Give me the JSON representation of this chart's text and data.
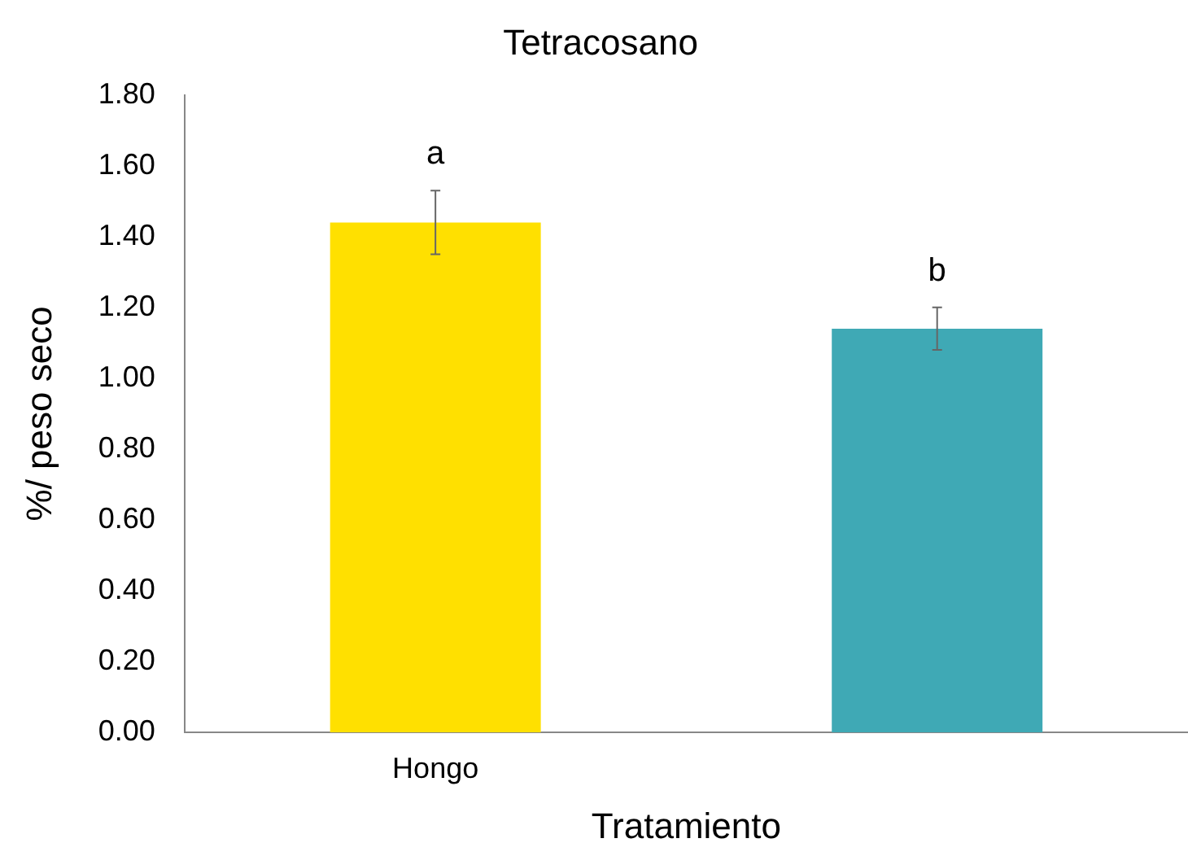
{
  "chart_data": {
    "type": "bar",
    "title": "Tetracosano",
    "xlabel": "Tratamiento",
    "ylabel": "%/ peso seco",
    "categories": [
      "Hongo",
      null
    ],
    "values": [
      1.44,
      1.14
    ],
    "errors": [
      0.09,
      0.06
    ],
    "colors": [
      "#ffe000",
      "#3fa9b5"
    ],
    "ylim": [
      0,
      1.8
    ],
    "yticks": [
      {
        "value": 0,
        "label": "0.00"
      },
      {
        "value": 0.2,
        "label": "0.20"
      },
      {
        "value": 0.4,
        "label": "0.40"
      },
      {
        "value": 0.6,
        "label": "0.60"
      },
      {
        "value": 0.8,
        "label": "0.80"
      },
      {
        "value": 1,
        "label": "1.00"
      },
      {
        "value": 1.2,
        "label": "1.20"
      },
      {
        "value": 1.4,
        "label": "1.40"
      },
      {
        "value": 1.6,
        "label": "1.60"
      },
      {
        "value": 1.8,
        "label": "1.80"
      }
    ],
    "annotations": [
      {
        "text": "a",
        "x": "Hongo",
        "y": 1.53
      },
      {
        "text": "b",
        "y": 1.2
      }
    ],
    "grid": false,
    "legend": false
  }
}
